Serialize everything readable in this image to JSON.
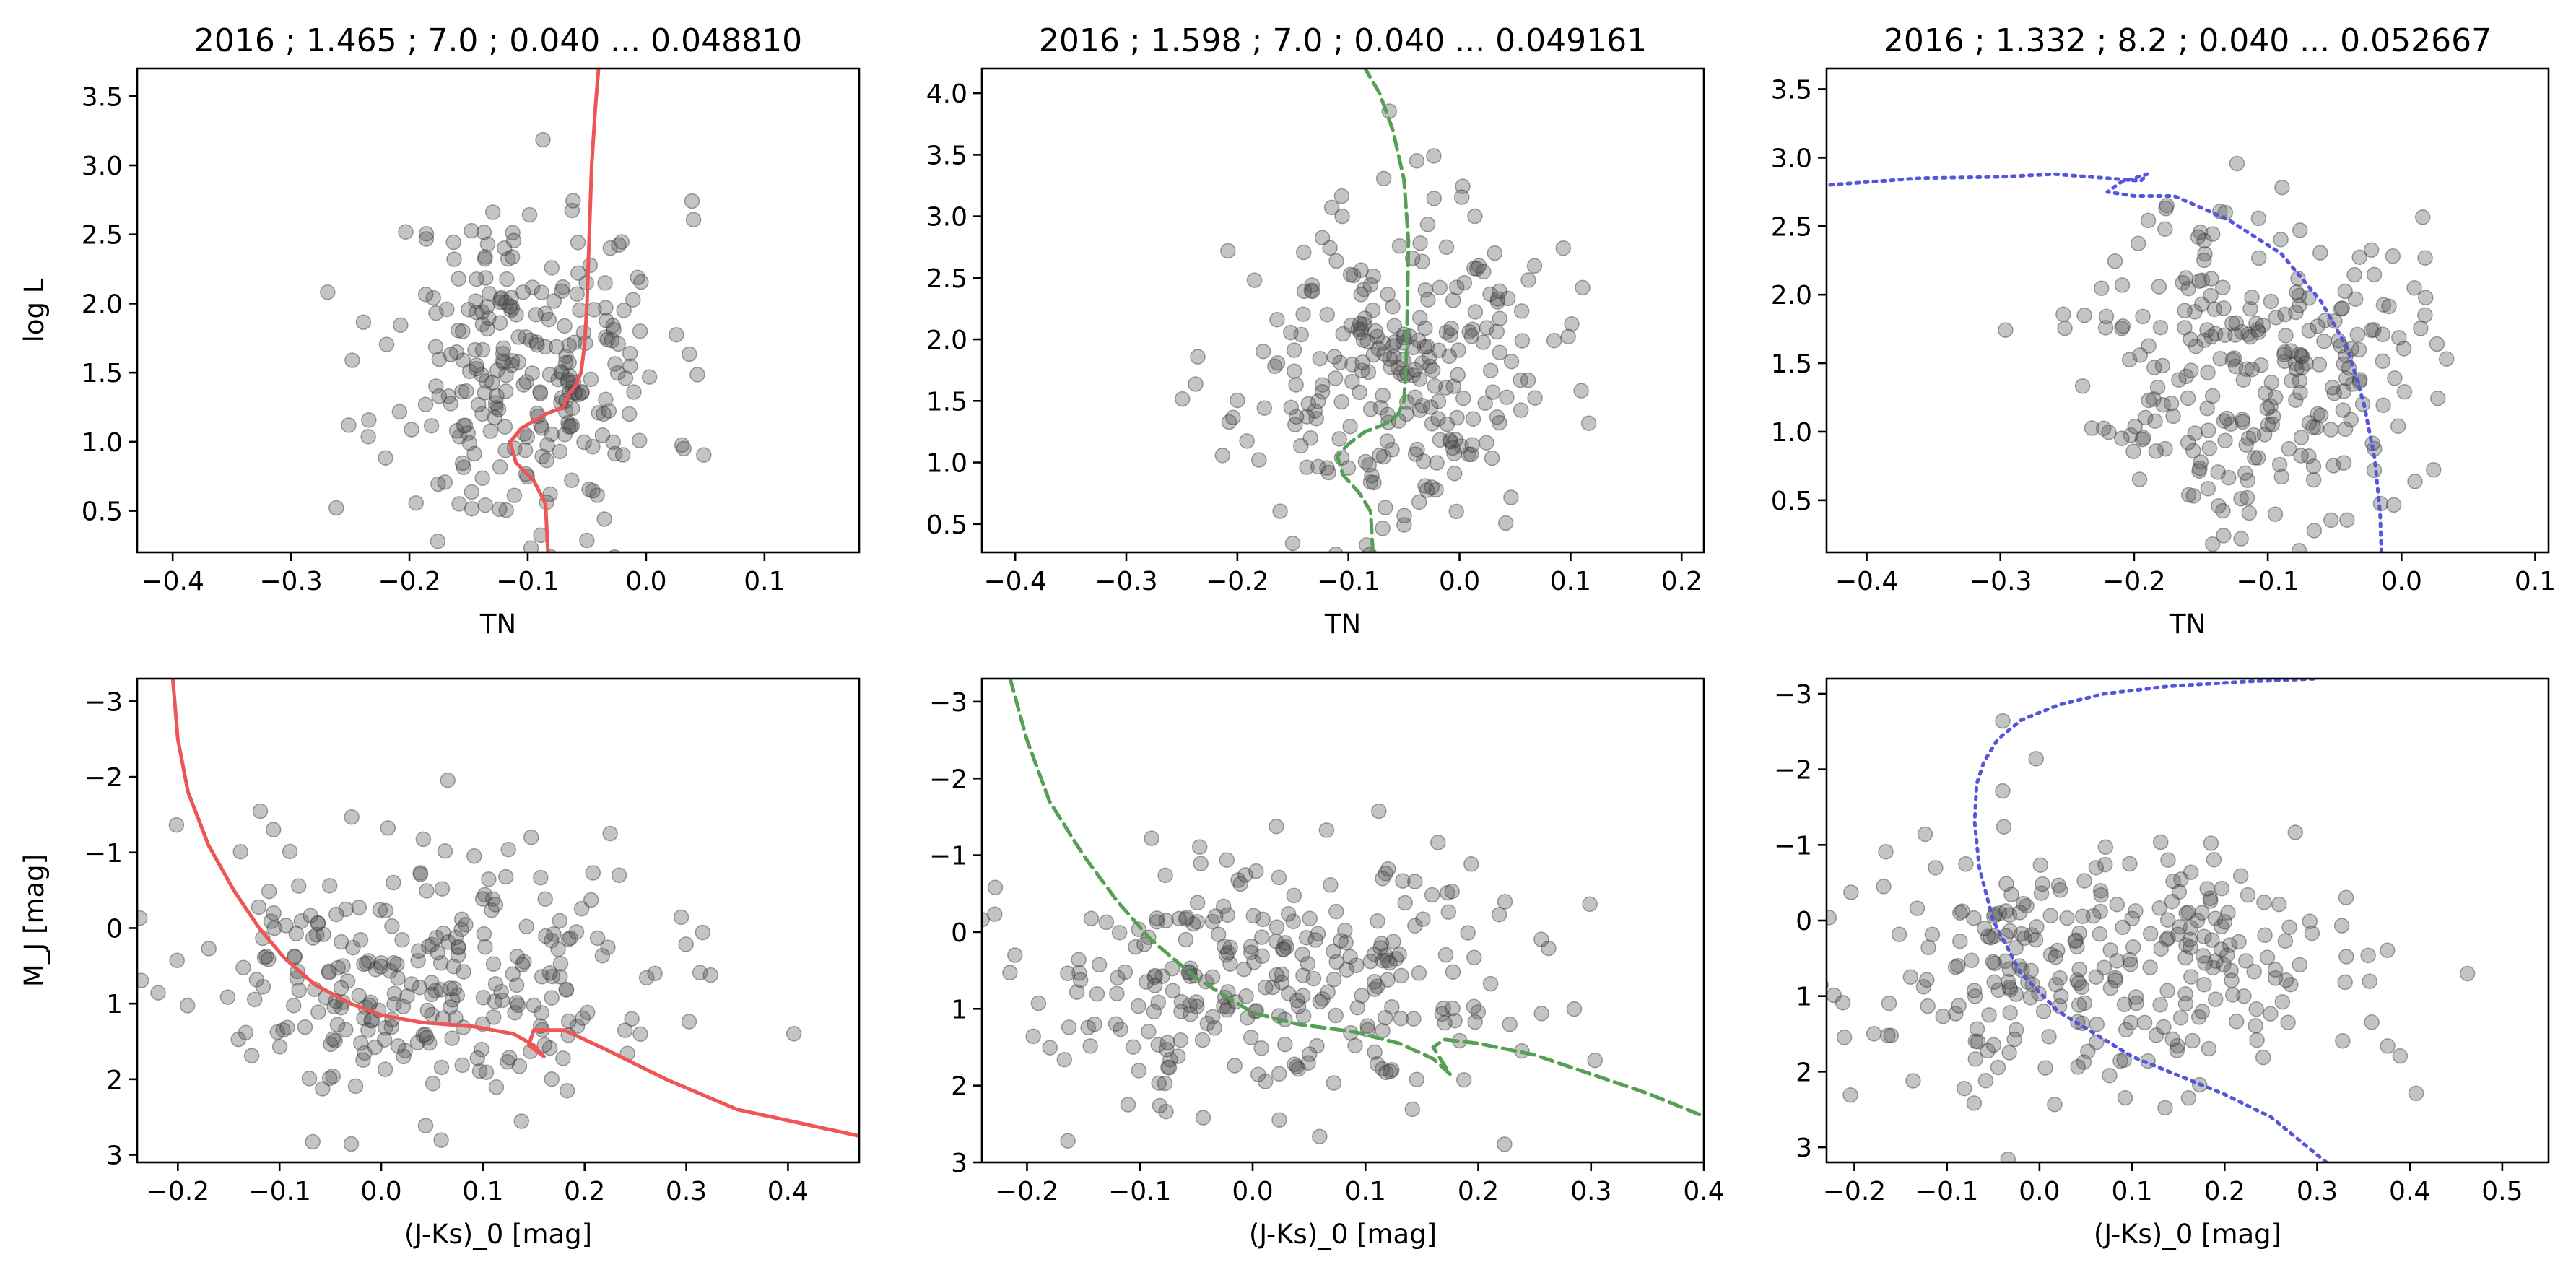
{
  "chart_data": [
    {
      "type": "scatter",
      "title": "2016 ; 1.465 ; 7.0 ; 0.040 ... 0.048810",
      "xlabel": "TN",
      "ylabel": "log L",
      "xlim": [
        -0.43,
        0.18
      ],
      "ylim": [
        0.2,
        3.7
      ],
      "y_inverted": false,
      "xticks": [
        "-0.4",
        "-0.3",
        "-0.2",
        "-0.1",
        "0.0",
        "0.1"
      ],
      "yticks": [
        "0.5",
        "1.0",
        "1.5",
        "2.0",
        "2.5",
        "3.0",
        "3.5"
      ],
      "scatter": {
        "color": "#555555",
        "seed": 11,
        "n": 260,
        "x_center": -0.1,
        "x_spread": 0.06,
        "y_center": 1.55,
        "y_spread": 0.6
      },
      "isochrone": {
        "color": "#ee5555",
        "style": "solid",
        "x": [
          -0.083,
          -0.085,
          -0.095,
          -0.11,
          -0.115,
          -0.105,
          -0.085,
          -0.07,
          -0.065,
          -0.06,
          -0.055,
          -0.052,
          -0.05,
          -0.048,
          -0.046,
          -0.043,
          -0.04
        ],
        "y": [
          0.2,
          0.55,
          0.72,
          0.85,
          1.0,
          1.1,
          1.2,
          1.25,
          1.35,
          1.4,
          1.5,
          1.7,
          2.0,
          2.5,
          3.0,
          3.4,
          3.72
        ]
      }
    },
    {
      "type": "scatter",
      "title": "2016 ; 1.598 ; 7.0 ; 0.040 ... 0.049161",
      "xlabel": "TN",
      "ylabel": "",
      "xlim": [
        -0.43,
        0.22
      ],
      "ylim": [
        0.27,
        4.2
      ],
      "y_inverted": false,
      "xticks": [
        "-0.4",
        "-0.3",
        "-0.2",
        "-0.1",
        "0.0",
        "0.1",
        "0.2"
      ],
      "yticks": [
        "0.5",
        "1.0",
        "1.5",
        "2.0",
        "2.5",
        "3.0",
        "3.5",
        "4.0"
      ],
      "scatter": {
        "color": "#555555",
        "seed": 23,
        "n": 260,
        "x_center": -0.06,
        "x_spread": 0.07,
        "y_center": 1.7,
        "y_spread": 0.7
      },
      "isochrone": {
        "color": "#55a055",
        "style": "dashed",
        "x": [
          -0.078,
          -0.08,
          -0.09,
          -0.105,
          -0.11,
          -0.1,
          -0.085,
          -0.07,
          -0.06,
          -0.055,
          -0.05,
          -0.048,
          -0.047,
          -0.046,
          -0.05,
          -0.06,
          -0.072,
          -0.085
        ],
        "y": [
          0.27,
          0.6,
          0.75,
          0.9,
          1.05,
          1.15,
          1.25,
          1.3,
          1.35,
          1.4,
          1.5,
          1.8,
          2.2,
          2.8,
          3.3,
          3.7,
          4.0,
          4.2
        ]
      }
    },
    {
      "type": "scatter",
      "title": "2016 ; 1.332 ; 8.2 ; 0.040 ... 0.052667",
      "xlabel": "TN",
      "ylabel": "",
      "xlim": [
        -0.43,
        0.11
      ],
      "ylim": [
        0.12,
        3.65
      ],
      "y_inverted": false,
      "xticks": [
        "-0.4",
        "-0.3",
        "-0.2",
        "-0.1",
        "0.0",
        "0.1"
      ],
      "yticks": [
        "0.5",
        "1.0",
        "1.5",
        "2.0",
        "2.5",
        "3.0",
        "3.5"
      ],
      "scatter": {
        "color": "#555555",
        "seed": 37,
        "n": 260,
        "x_center": -0.11,
        "x_spread": 0.06,
        "y_center": 1.5,
        "y_spread": 0.6
      },
      "isochrone": {
        "color": "#5555dd",
        "style": "dotted",
        "x": [
          -0.015,
          -0.016,
          -0.02,
          -0.028,
          -0.04,
          -0.06,
          -0.09,
          -0.13,
          -0.17,
          -0.2,
          -0.22,
          -0.21,
          -0.19,
          -0.195,
          -0.22,
          -0.26,
          -0.3,
          -0.36,
          -0.43
        ],
        "y": [
          0.12,
          0.4,
          0.8,
          1.2,
          1.6,
          1.95,
          2.3,
          2.55,
          2.72,
          2.72,
          2.75,
          2.82,
          2.88,
          2.83,
          2.85,
          2.88,
          2.86,
          2.85,
          2.8
        ]
      }
    },
    {
      "type": "scatter",
      "title": "",
      "xlabel": "(J-Ks)_0 [mag]",
      "ylabel": "M_J [mag]",
      "xlim": [
        -0.24,
        0.47
      ],
      "ylim": [
        -3.3,
        3.1
      ],
      "y_inverted": true,
      "xticks": [
        "-0.2",
        "-0.1",
        "0.0",
        "0.1",
        "0.2",
        "0.3",
        "0.4"
      ],
      "yticks": [
        "-3",
        "-2",
        "-1",
        "0",
        "1",
        "2",
        "3"
      ],
      "scatter": {
        "color": "#555555",
        "seed": 53,
        "n": 270,
        "x_center": 0.05,
        "x_spread": 0.13,
        "y_center": 0.6,
        "y_spread": 0.9
      },
      "isochrone": {
        "color": "#ee5555",
        "style": "solid",
        "x": [
          -0.205,
          -0.2,
          -0.19,
          -0.17,
          -0.145,
          -0.12,
          -0.095,
          -0.065,
          -0.03,
          0.0,
          0.04,
          0.09,
          0.13,
          0.15,
          0.16,
          0.145,
          0.15,
          0.18,
          0.22,
          0.28,
          0.35,
          0.47
        ],
        "y": [
          -3.3,
          -2.5,
          -1.8,
          -1.1,
          -0.5,
          0.0,
          0.4,
          0.75,
          1.0,
          1.15,
          1.25,
          1.3,
          1.4,
          1.55,
          1.7,
          1.55,
          1.35,
          1.35,
          1.6,
          2.0,
          2.4,
          2.75
        ]
      }
    },
    {
      "type": "scatter",
      "title": "",
      "xlabel": "(J-Ks)_0 [mag]",
      "ylabel": "",
      "xlim": [
        -0.24,
        0.4
      ],
      "ylim": [
        -3.3,
        3.0
      ],
      "y_inverted": true,
      "xticks": [
        "-0.2",
        "-0.1",
        "0.0",
        "0.1",
        "0.2",
        "0.3",
        "0.4"
      ],
      "yticks": [
        "-3",
        "-2",
        "-1",
        "0",
        "1",
        "2",
        "3"
      ],
      "scatter": {
        "color": "#555555",
        "seed": 71,
        "n": 270,
        "x_center": 0.02,
        "x_spread": 0.13,
        "y_center": 0.6,
        "y_spread": 0.9
      },
      "isochrone": {
        "color": "#55a055",
        "style": "dashed",
        "x": [
          -0.215,
          -0.2,
          -0.18,
          -0.15,
          -0.12,
          -0.09,
          -0.05,
          0.0,
          0.04,
          0.09,
          0.13,
          0.16,
          0.175,
          0.16,
          0.17,
          0.2,
          0.25,
          0.3,
          0.35,
          0.4
        ],
        "y": [
          -3.3,
          -2.5,
          -1.7,
          -1.0,
          -0.4,
          0.1,
          0.6,
          1.05,
          1.2,
          1.3,
          1.45,
          1.65,
          1.85,
          1.5,
          1.4,
          1.45,
          1.6,
          1.85,
          2.1,
          2.4
        ]
      }
    },
    {
      "type": "scatter",
      "title": "",
      "xlabel": "(J-Ks)_0 [mag]",
      "ylabel": "",
      "xlim": [
        -0.23,
        0.55
      ],
      "ylim": [
        -3.2,
        3.2
      ],
      "y_inverted": true,
      "xticks": [
        "-0.2",
        "-0.1",
        "0.0",
        "0.1",
        "0.2",
        "0.3",
        "0.4",
        "0.5"
      ],
      "yticks": [
        "-3",
        "-2",
        "-1",
        "0",
        "1",
        "2",
        "3"
      ],
      "scatter": {
        "color": "#555555",
        "seed": 89,
        "n": 280,
        "x_center": 0.08,
        "x_spread": 0.14,
        "y_center": 0.6,
        "y_spread": 0.9
      },
      "isochrone": {
        "color": "#5555dd",
        "style": "dotted",
        "x": [
          0.31,
          0.25,
          0.2,
          0.14,
          0.1,
          0.06,
          0.02,
          -0.02,
          -0.05,
          -0.065,
          -0.07,
          -0.068,
          -0.06,
          -0.045,
          -0.02,
          0.02,
          0.07,
          0.14,
          0.22,
          0.3
        ],
        "y": [
          3.2,
          2.6,
          2.3,
          2.0,
          1.8,
          1.5,
          1.2,
          0.7,
          0.0,
          -0.7,
          -1.3,
          -1.8,
          -2.1,
          -2.4,
          -2.65,
          -2.85,
          -3.0,
          -3.1,
          -3.16,
          -3.2
        ]
      }
    }
  ]
}
